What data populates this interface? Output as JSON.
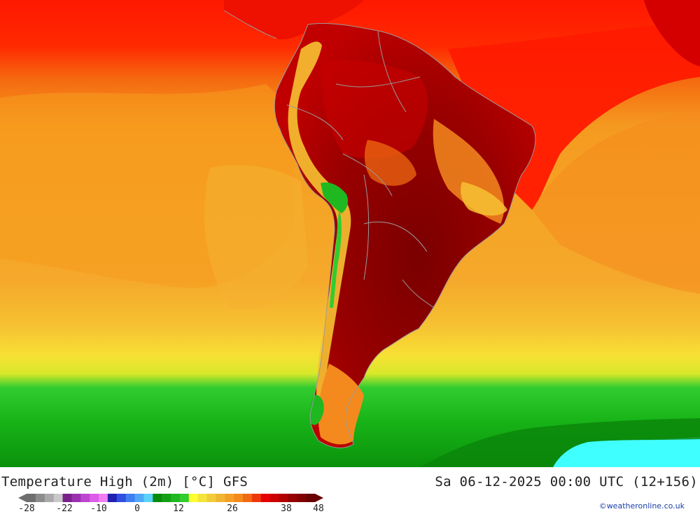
{
  "title_left": "Temperature High (2m) [°C] GFS",
  "title_right": "Sa 06-12-2025 00:00 UTC (12+156)",
  "credit": "©weatheronline.co.uk",
  "legend": {
    "ticks": [
      "-28",
      "-22",
      "-10",
      "0",
      "12",
      "26",
      "38",
      "48"
    ],
    "colors": [
      "#6e6e6e",
      "#8c8c8c",
      "#a9a9a9",
      "#c8c8c8",
      "#7a1f8a",
      "#9b2fb0",
      "#bd45d0",
      "#dd5cea",
      "#f27cf2",
      "#1f1fb0",
      "#2f4fe0",
      "#3f7ff0",
      "#4fa8f8",
      "#5ad2fa",
      "#0a8a0a",
      "#14a014",
      "#20b820",
      "#30cc30",
      "#ffff30",
      "#f4e43a",
      "#f2cc38",
      "#f0b632",
      "#f4a028",
      "#f48a1e",
      "#f06a12",
      "#ee3a0a",
      "#e60000",
      "#cc0000",
      "#b00000",
      "#960000",
      "#800000",
      "#6a0000"
    ]
  },
  "colors": {
    "ocean_north": "#ff1500",
    "ocean_mid": "#f5a023",
    "ocean_south": "#18b418",
    "land_hot": "#920000",
    "antarctic_cold": "#40ffff",
    "borders": "#9a9a9a"
  }
}
